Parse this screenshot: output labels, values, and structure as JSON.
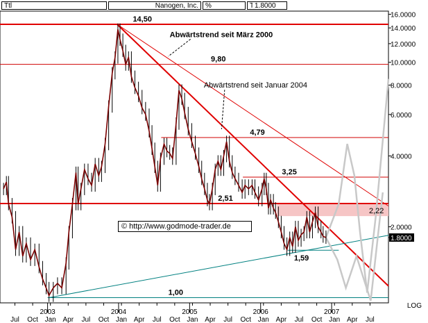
{
  "header": {
    "ttl_label": "Ttl",
    "company": "Nanogen, Inc.",
    "percent_label": "%",
    "t_label": "T",
    "price": "1.8000"
  },
  "chart_data": {
    "type": "line",
    "title": "",
    "scale": "log",
    "ylim": [
      0.95,
      16.5
    ],
    "grid": false,
    "y_ticks": [
      {
        "value": 16,
        "label": "16.0000"
      },
      {
        "value": 14,
        "label": "14.0000"
      },
      {
        "value": 12,
        "label": "12.0000"
      },
      {
        "value": 10,
        "label": "10.0000"
      },
      {
        "value": 8,
        "label": "8.0000"
      },
      {
        "value": 6,
        "label": "6.0000"
      },
      {
        "value": 4,
        "label": "4.0000"
      },
      {
        "value": 2,
        "label": "2.0000"
      },
      {
        "value": 1.8,
        "label": "1.8000",
        "highlight": true
      }
    ],
    "y_axis_note": "LOG",
    "x_month_labels": [
      {
        "t": 2002.54,
        "label": "Jul"
      },
      {
        "t": 2002.79,
        "label": "Oct"
      },
      {
        "t": 2003.04,
        "label": "Jan"
      },
      {
        "t": 2003.29,
        "label": "Apr"
      },
      {
        "t": 2003.54,
        "label": "Jul"
      },
      {
        "t": 2003.79,
        "label": "Oct"
      },
      {
        "t": 2004.04,
        "label": "Jan"
      },
      {
        "t": 2004.29,
        "label": "Apr"
      },
      {
        "t": 2004.54,
        "label": "Jul"
      },
      {
        "t": 2004.79,
        "label": "Oct"
      },
      {
        "t": 2005.04,
        "label": "Jan"
      },
      {
        "t": 2005.29,
        "label": "Apr"
      },
      {
        "t": 2005.54,
        "label": "Jul"
      },
      {
        "t": 2005.79,
        "label": "Oct"
      },
      {
        "t": 2006.04,
        "label": "Jan"
      },
      {
        "t": 2006.29,
        "label": "Apr"
      },
      {
        "t": 2006.54,
        "label": "Jul"
      },
      {
        "t": 2006.79,
        "label": "Oct"
      },
      {
        "t": 2007.04,
        "label": "Jan"
      },
      {
        "t": 2007.29,
        "label": "Apr"
      },
      {
        "t": 2007.54,
        "label": "Jul"
      }
    ],
    "x_year_labels": [
      {
        "t": 2003.0,
        "label": "2003"
      },
      {
        "t": 2004.0,
        "label": "2004"
      },
      {
        "t": 2005.0,
        "label": "2005"
      },
      {
        "t": 2006.0,
        "label": "2006"
      },
      {
        "t": 2007.0,
        "label": "2007"
      }
    ],
    "price_series": [
      [
        2002.38,
        2.9
      ],
      [
        2002.42,
        3.1
      ],
      [
        2002.45,
        2.5
      ],
      [
        2002.5,
        2.2
      ],
      [
        2002.55,
        1.6
      ],
      [
        2002.6,
        1.9
      ],
      [
        2002.65,
        1.5
      ],
      [
        2002.7,
        1.7
      ],
      [
        2002.76,
        1.45
      ],
      [
        2002.82,
        1.6
      ],
      [
        2002.88,
        1.35
      ],
      [
        2002.93,
        1.2
      ],
      [
        2002.98,
        1.1
      ],
      [
        2003.02,
        1.02
      ],
      [
        2003.08,
        1.1
      ],
      [
        2003.14,
        1.15
      ],
      [
        2003.2,
        1.1
      ],
      [
        2003.26,
        1.4
      ],
      [
        2003.3,
        1.9
      ],
      [
        2003.35,
        2.5
      ],
      [
        2003.4,
        3.4
      ],
      [
        2003.43,
        2.5
      ],
      [
        2003.47,
        2.9
      ],
      [
        2003.52,
        3.5
      ],
      [
        2003.57,
        3.2
      ],
      [
        2003.62,
        3.0
      ],
      [
        2003.67,
        3.7
      ],
      [
        2003.72,
        3.3
      ],
      [
        2003.76,
        3.6
      ],
      [
        2003.81,
        4.5
      ],
      [
        2003.86,
        6.5
      ],
      [
        2003.91,
        9.0
      ],
      [
        2003.95,
        10.5
      ],
      [
        2003.99,
        13.8
      ],
      [
        2004.02,
        12.5
      ],
      [
        2004.06,
        11.2
      ],
      [
        2004.1,
        9.8
      ],
      [
        2004.14,
        10.5
      ],
      [
        2004.18,
        8.7
      ],
      [
        2004.23,
        7.8
      ],
      [
        2004.28,
        7.2
      ],
      [
        2004.33,
        6.4
      ],
      [
        2004.38,
        6.0
      ],
      [
        2004.43,
        5.1
      ],
      [
        2004.47,
        4.3
      ],
      [
        2004.51,
        3.6
      ],
      [
        2004.55,
        3.0
      ],
      [
        2004.59,
        3.9
      ],
      [
        2004.64,
        4.5
      ],
      [
        2004.68,
        4.2
      ],
      [
        2004.72,
        4.1
      ],
      [
        2004.76,
        3.9
      ],
      [
        2004.81,
        5.5
      ],
      [
        2004.85,
        7.6
      ],
      [
        2004.89,
        7.0
      ],
      [
        2004.93,
        6.1
      ],
      [
        2004.98,
        5.2
      ],
      [
        2005.03,
        4.6
      ],
      [
        2005.08,
        4.1
      ],
      [
        2005.13,
        3.6
      ],
      [
        2005.17,
        3.2
      ],
      [
        2005.21,
        2.9
      ],
      [
        2005.25,
        2.6
      ],
      [
        2005.28,
        2.5
      ],
      [
        2005.32,
        2.9
      ],
      [
        2005.36,
        3.5
      ],
      [
        2005.4,
        3.8
      ],
      [
        2005.44,
        3.5
      ],
      [
        2005.48,
        4.0
      ],
      [
        2005.52,
        4.6
      ],
      [
        2005.56,
        3.8
      ],
      [
        2005.6,
        3.4
      ],
      [
        2005.64,
        3.2
      ],
      [
        2005.69,
        3.0
      ],
      [
        2005.74,
        2.8
      ],
      [
        2005.78,
        3.0
      ],
      [
        2005.83,
        2.9
      ],
      [
        2005.88,
        3.0
      ],
      [
        2005.92,
        2.8
      ],
      [
        2005.97,
        2.6
      ],
      [
        2006.02,
        2.9
      ],
      [
        2006.05,
        3.2
      ],
      [
        2006.08,
        2.9
      ],
      [
        2006.11,
        2.4
      ],
      [
        2006.14,
        2.6
      ],
      [
        2006.18,
        2.4
      ],
      [
        2006.21,
        2.3
      ],
      [
        2006.25,
        2.1
      ],
      [
        2006.29,
        1.9
      ],
      [
        2006.33,
        1.7
      ],
      [
        2006.37,
        1.6
      ],
      [
        2006.41,
        1.8
      ],
      [
        2006.45,
        1.65
      ],
      [
        2006.49,
        2.0
      ],
      [
        2006.53,
        1.75
      ],
      [
        2006.57,
        1.85
      ],
      [
        2006.61,
        1.9
      ],
      [
        2006.65,
        2.2
      ],
      [
        2006.69,
        1.9
      ],
      [
        2006.73,
        2.1
      ],
      [
        2006.77,
        2.3
      ],
      [
        2006.81,
        2.0
      ],
      [
        2006.85,
        1.9
      ],
      [
        2006.88,
        1.82
      ],
      [
        2006.92,
        1.8
      ]
    ],
    "horizontal_levels": [
      {
        "value": 14.5,
        "label": "14,50",
        "color": "#e00000",
        "width": 2,
        "x_start": 2002.33,
        "label_t": 2004.2,
        "label_pos": "right"
      },
      {
        "value": 9.8,
        "label": "9,80",
        "color": "#d00000",
        "width": 1,
        "x_start": 2002.33,
        "label_t": 2005.3,
        "label_pos": "above"
      },
      {
        "value": 4.79,
        "label": "4,79",
        "color": "#d00000",
        "width": 1,
        "x_start": 2004.6,
        "label_t": 2005.85,
        "label_pos": "above"
      },
      {
        "value": 3.25,
        "label": "3,25",
        "color": "#d00000",
        "width": 1,
        "x_start": 2005.75,
        "label_t": 2006.3,
        "label_pos": "above"
      },
      {
        "value": 2.51,
        "label": "2,51",
        "color": "#e00000",
        "width": 2,
        "x_start": 2002.33,
        "label_t": 2005.4,
        "label_pos": "above"
      },
      {
        "value": 1.59,
        "label": "1,59",
        "color": "#008080",
        "width": 1,
        "x_start": 2006.38,
        "x_end": 2007.1,
        "label_t": 2006.47,
        "label_pos": "below"
      },
      {
        "value": 1.0,
        "label": "1,00",
        "color": "#008080",
        "width": 1,
        "x_start": 2003.0,
        "label_t": 2004.7,
        "label_pos": "above"
      }
    ],
    "zone": {
      "low": 2.22,
      "high": 2.51,
      "t_start": 2006.23,
      "label": "2,22",
      "fill": "#f6c5c5"
    },
    "trendlines": [
      {
        "name": "Abwärtstrend seit März 2000",
        "from": [
          2003.98,
          14.5
        ],
        "to": [
          2007.8,
          1.12
        ],
        "color": "#e00000",
        "width": 2
      },
      {
        "name": "Abwärtstrend seit Januar 2004",
        "from": [
          2003.98,
          14.5
        ],
        "to": [
          2007.8,
          2.45
        ],
        "color": "#e00000",
        "width": 1
      },
      {
        "name": "support",
        "from": [
          2003.02,
          1.0
        ],
        "to": [
          2007.8,
          1.84
        ],
        "color": "#008080",
        "width": 1
      }
    ],
    "annotations": [
      {
        "text": "Abwärtstrend seit März 2000",
        "bold": true,
        "t": 2004.72,
        "v": 12.8,
        "arrow_to": [
          2004.7,
          10.6
        ]
      },
      {
        "text": "Abwärtstrend seit Januar 2004",
        "bold": false,
        "t": 2005.2,
        "v": 7.8,
        "arrow_to": [
          2005.45,
          5.2
        ]
      }
    ],
    "projection": {
      "color": "#c8c8c8",
      "points": [
        [
          2006.92,
          1.8
        ],
        [
          2007.1,
          2.5
        ],
        [
          2007.22,
          4.5
        ],
        [
          2007.32,
          3.3
        ],
        [
          2007.4,
          1.9
        ],
        [
          2007.5,
          1.05
        ],
        [
          2007.62,
          2.2
        ],
        [
          2007.8,
          8.5
        ]
      ]
    },
    "projection2": {
      "color": "#c8c8c8",
      "points": [
        [
          2006.92,
          1.8
        ],
        [
          2007.08,
          1.45
        ],
        [
          2007.2,
          1.1
        ],
        [
          2007.35,
          1.5
        ],
        [
          2007.55,
          0.97
        ],
        [
          2007.72,
          2.8
        ]
      ]
    }
  },
  "watermark": "© http://www.godmode-trader.de"
}
